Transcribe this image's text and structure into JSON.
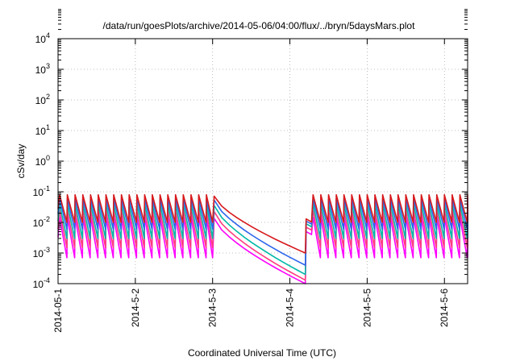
{
  "chart_data": {
    "type": "line",
    "title": "/data/run/goesPlots/archive/2014-05-06/04:00/flux/../bryn/5daysMars.plot",
    "xlabel": "Coordinated Universal Time (UTC)",
    "ylabel": "cSv/day",
    "yscale": "log",
    "ylim": [
      0.0001,
      10000
    ],
    "xlim": [
      0,
      5.3
    ],
    "grid": true,
    "x_ticks": [
      {
        "value": 0,
        "label": "2014-05-1"
      },
      {
        "value": 1,
        "label": "2014-5-2"
      },
      {
        "value": 2,
        "label": "2014-5-3"
      },
      {
        "value": 3,
        "label": "2014-5-4"
      },
      {
        "value": 4,
        "label": "2014-5-5"
      },
      {
        "value": 5,
        "label": "2014-5-6"
      }
    ],
    "y_ticks": [
      {
        "value": 0.0001,
        "base": "10",
        "exp": "-4"
      },
      {
        "value": 0.001,
        "base": "10",
        "exp": "-3"
      },
      {
        "value": 0.01,
        "base": "10",
        "exp": "-2"
      },
      {
        "value": 0.1,
        "base": "10",
        "exp": "-1"
      },
      {
        "value": 1,
        "base": "10",
        "exp": "0"
      },
      {
        "value": 10,
        "base": "10",
        "exp": "1"
      },
      {
        "value": 100,
        "base": "10",
        "exp": "2"
      },
      {
        "value": 1000,
        "base": "10",
        "exp": "3"
      },
      {
        "value": 10000,
        "base": "10",
        "exp": "4"
      }
    ],
    "sawtooth": {
      "period_days": 0.1,
      "first_peak_day": 0.02,
      "gap_start_day": 2.0,
      "gap_end_day": 3.2,
      "recovery_day": 3.3
    },
    "series": [
      {
        "color": "#ff00ff",
        "peak": 0.015,
        "trough": 0.0007,
        "gap_min": 0.0001,
        "recovery": 0.005
      },
      {
        "color": "#ff3b7f",
        "peak": 0.025,
        "trough": 0.0015,
        "gap_min": 0.00013,
        "recovery": 0.007
      },
      {
        "color": "#00b8a8",
        "peak": 0.04,
        "trough": 0.003,
        "gap_min": 0.0002,
        "recovery": 0.009
      },
      {
        "color": "#2b65ec",
        "peak": 0.06,
        "trough": 0.006,
        "gap_min": 0.0004,
        "recovery": 0.011
      },
      {
        "color": "#d7191c",
        "peak": 0.08,
        "trough": 0.01,
        "gap_min": 0.001,
        "recovery": 0.013
      }
    ]
  }
}
